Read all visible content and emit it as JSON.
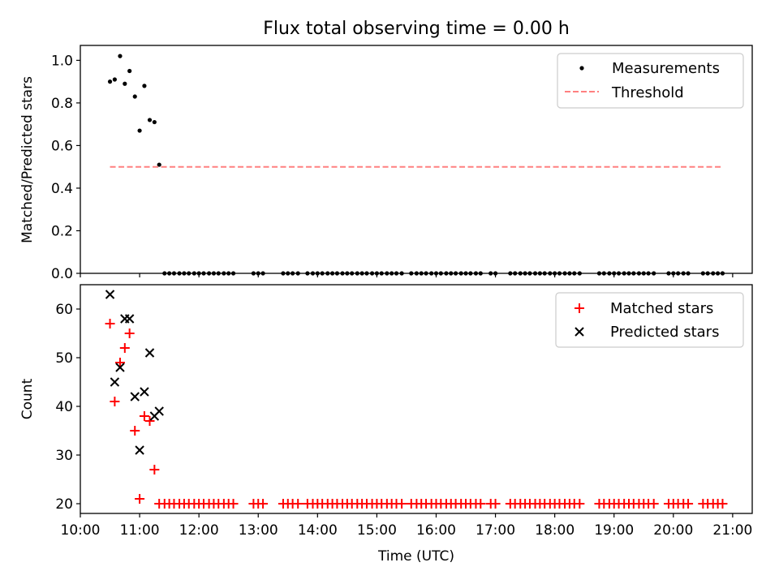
{
  "chart_data": [
    {
      "type": "scatter",
      "title": "Flux total observing time = 0.00 h",
      "xlabel": "",
      "ylabel": "Matched/Predicted stars",
      "xlim": [
        10.0,
        21.33
      ],
      "ylim": [
        0.0,
        1.07
      ],
      "yticks": [
        0.0,
        0.2,
        0.4,
        0.6,
        0.8,
        1.0
      ],
      "ytick_labels": [
        "0.0",
        "0.2",
        "0.4",
        "0.6",
        "0.8",
        "1.0"
      ],
      "legend": {
        "position": "top-right",
        "entries": [
          "Measurements",
          "Threshold"
        ]
      },
      "series": [
        {
          "name": "Measurements",
          "marker": "dot",
          "color": "#000000",
          "x": [
            10.5,
            10.58,
            10.67,
            10.75,
            10.83,
            10.92,
            11.0,
            11.08,
            11.17,
            11.25,
            11.33
          ],
          "y": [
            0.9,
            0.91,
            1.02,
            0.89,
            0.95,
            0.83,
            0.67,
            0.88,
            0.72,
            0.71,
            0.51
          ]
        },
        {
          "name": "Measurements (zero)",
          "marker": "dot",
          "color": "#000000",
          "x": [
            11.42,
            11.5,
            11.58,
            11.67,
            11.75,
            11.83,
            11.92,
            12.0,
            12.08,
            12.17,
            12.25,
            12.33,
            12.42,
            12.5,
            12.58,
            12.92,
            13.0,
            13.08,
            13.42,
            13.5,
            13.58,
            13.67,
            13.83,
            13.92,
            14.0,
            14.08,
            14.17,
            14.25,
            14.33,
            14.42,
            14.5,
            14.58,
            14.67,
            14.75,
            14.83,
            14.92,
            15.0,
            15.08,
            15.17,
            15.25,
            15.33,
            15.42,
            15.58,
            15.67,
            15.75,
            15.83,
            15.92,
            16.0,
            16.08,
            16.17,
            16.25,
            16.33,
            16.42,
            16.5,
            16.58,
            16.67,
            16.75,
            16.92,
            17.0,
            17.25,
            17.33,
            17.42,
            17.5,
            17.58,
            17.67,
            17.75,
            17.83,
            17.92,
            18.0,
            18.08,
            18.17,
            18.25,
            18.33,
            18.42,
            18.75,
            18.83,
            18.92,
            19.0,
            19.08,
            19.17,
            19.25,
            19.33,
            19.42,
            19.5,
            19.58,
            19.67,
            19.92,
            20.0,
            20.08,
            20.17,
            20.25,
            20.5,
            20.58,
            20.67,
            20.75,
            20.83
          ],
          "y_value": 0.0
        },
        {
          "name": "Threshold",
          "line_style": "dashed",
          "color": "#ff8080",
          "x": [
            10.5,
            20.83
          ],
          "y": [
            0.5,
            0.5
          ]
        }
      ]
    },
    {
      "type": "scatter",
      "title": "",
      "xlabel": "Time (UTC)",
      "ylabel": "Count",
      "xlim": [
        10.0,
        21.33
      ],
      "ylim": [
        18.0,
        65.0
      ],
      "xticks": [
        10,
        11,
        12,
        13,
        14,
        15,
        16,
        17,
        18,
        19,
        20,
        21
      ],
      "xtick_labels": [
        "10:00",
        "11:00",
        "12:00",
        "13:00",
        "14:00",
        "15:00",
        "16:00",
        "17:00",
        "18:00",
        "19:00",
        "20:00",
        "21:00"
      ],
      "yticks": [
        20,
        30,
        40,
        50,
        60
      ],
      "ytick_labels": [
        "20",
        "30",
        "40",
        "50",
        "60"
      ],
      "legend": {
        "position": "top-right",
        "entries": [
          "Matched stars",
          "Predicted stars"
        ]
      },
      "series": [
        {
          "name": "Matched stars",
          "marker": "plus",
          "color": "#ff0000",
          "x": [
            10.5,
            10.58,
            10.67,
            10.75,
            10.83,
            10.92,
            11.0,
            11.08,
            11.17,
            11.25
          ],
          "y": [
            57,
            41,
            49,
            52,
            55,
            35,
            21,
            38,
            37,
            27
          ]
        },
        {
          "name": "Matched stars (floor)",
          "marker": "plus",
          "color": "#ff0000",
          "x": [
            11.33,
            11.42,
            11.5,
            11.58,
            11.67,
            11.75,
            11.83,
            11.92,
            12.0,
            12.08,
            12.17,
            12.25,
            12.33,
            12.42,
            12.5,
            12.58,
            12.92,
            13.0,
            13.08,
            13.42,
            13.5,
            13.58,
            13.67,
            13.83,
            13.92,
            14.0,
            14.08,
            14.17,
            14.25,
            14.33,
            14.42,
            14.5,
            14.58,
            14.67,
            14.75,
            14.83,
            14.92,
            15.0,
            15.08,
            15.17,
            15.25,
            15.33,
            15.42,
            15.58,
            15.67,
            15.75,
            15.83,
            15.92,
            16.0,
            16.08,
            16.17,
            16.25,
            16.33,
            16.42,
            16.5,
            16.58,
            16.67,
            16.75,
            16.92,
            17.0,
            17.25,
            17.33,
            17.42,
            17.5,
            17.58,
            17.67,
            17.75,
            17.83,
            17.92,
            18.0,
            18.08,
            18.17,
            18.25,
            18.33,
            18.42,
            18.75,
            18.83,
            18.92,
            19.0,
            19.08,
            19.17,
            19.25,
            19.33,
            19.42,
            19.5,
            19.58,
            19.67,
            19.92,
            20.0,
            20.08,
            20.17,
            20.25,
            20.5,
            20.58,
            20.67,
            20.75,
            20.83
          ],
          "y_value": 20
        },
        {
          "name": "Predicted stars",
          "marker": "x",
          "color": "#000000",
          "x": [
            10.5,
            10.58,
            10.67,
            10.75,
            10.83,
            10.92,
            11.0,
            11.08,
            11.17,
            11.25,
            11.33
          ],
          "y": [
            63,
            45,
            48,
            58,
            58,
            42,
            31,
            43,
            51,
            38,
            39
          ]
        }
      ]
    }
  ]
}
